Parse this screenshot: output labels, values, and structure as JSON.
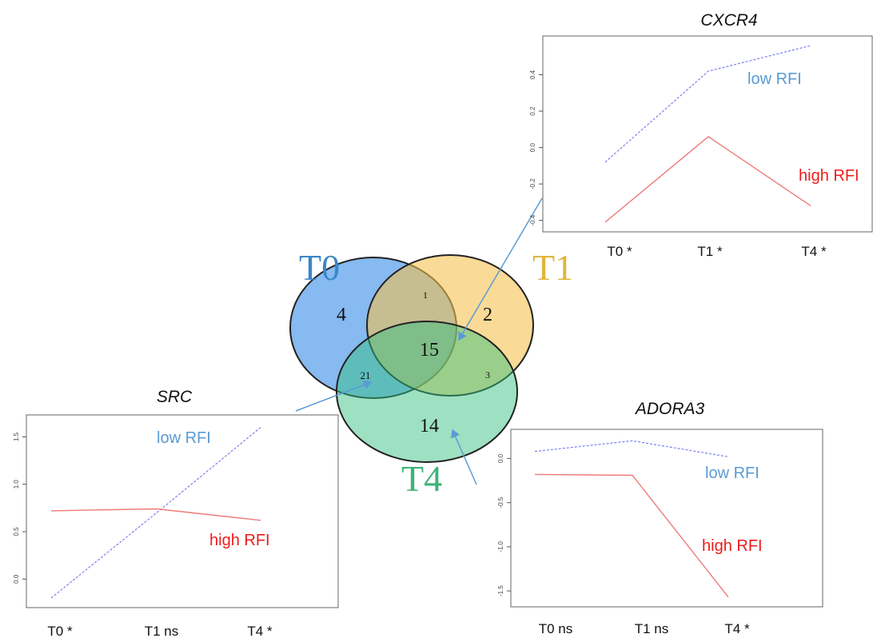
{
  "venn": {
    "sets": [
      {
        "name": "T0",
        "color": "#3b8fe6"
      },
      {
        "name": "T1",
        "color": "#f5c04a"
      },
      {
        "name": "T4",
        "color": "#33c180"
      }
    ],
    "regions": {
      "t0_only": "4",
      "t0_t1": "1",
      "t1_only": "2",
      "t0_t1_t4": "15",
      "t0_t4": "21",
      "t1_t4": "3",
      "t4_only": "14"
    },
    "title_colors": {
      "T0": "#3a86c8",
      "T1": "#e0b53a",
      "T4": "#3cb37a"
    }
  },
  "series_colors": {
    "low": "#7b7ff0",
    "high": "#f07a7a"
  },
  "chart_data": [
    {
      "type": "line",
      "title": "CXCR4",
      "categories": [
        "T0 *",
        "T1 *",
        "T4 *"
      ],
      "ylim": [
        -0.42,
        0.57
      ],
      "yticks": [
        "-0.4",
        "-0.2",
        "0.0",
        "0.2",
        "0.4"
      ],
      "ytick_values": [
        -0.4,
        -0.2,
        0.0,
        0.2,
        0.4
      ],
      "series": [
        {
          "name": "low RFI",
          "style": "dashed",
          "values": [
            -0.08,
            0.42,
            0.56
          ]
        },
        {
          "name": "high RFI",
          "style": "solid",
          "values": [
            -0.41,
            0.06,
            -0.32
          ]
        }
      ],
      "grid": false
    },
    {
      "type": "line",
      "title": "SRC",
      "categories": [
        "T0 *",
        "T1 ns",
        "T4 *"
      ],
      "ylim": [
        -0.22,
        1.65
      ],
      "yticks": [
        "0.0",
        "0.5",
        "1.0",
        "1.5"
      ],
      "ytick_values": [
        0.0,
        0.5,
        1.0,
        1.5
      ],
      "series": [
        {
          "name": "low RFI",
          "style": "dashed",
          "values": [
            -0.2,
            0.7,
            1.6
          ]
        },
        {
          "name": "high RFI",
          "style": "solid",
          "values": [
            0.72,
            0.74,
            0.62
          ]
        }
      ],
      "grid": false
    },
    {
      "type": "line",
      "title": "ADORA3",
      "categories": [
        "T0 ns",
        "T1 ns",
        "T4 *"
      ],
      "ylim": [
        -1.6,
        0.25
      ],
      "yticks": [
        "-1.5",
        "-1.0",
        "-0.5",
        "0.0"
      ],
      "ytick_values": [
        -1.5,
        -1.0,
        -0.5,
        0.0
      ],
      "series": [
        {
          "name": "low RFI",
          "style": "dashed",
          "values": [
            0.08,
            0.2,
            0.02
          ]
        },
        {
          "name": "high RFI",
          "style": "solid",
          "values": [
            -0.18,
            -0.19,
            -1.57
          ]
        }
      ],
      "grid": false
    }
  ]
}
